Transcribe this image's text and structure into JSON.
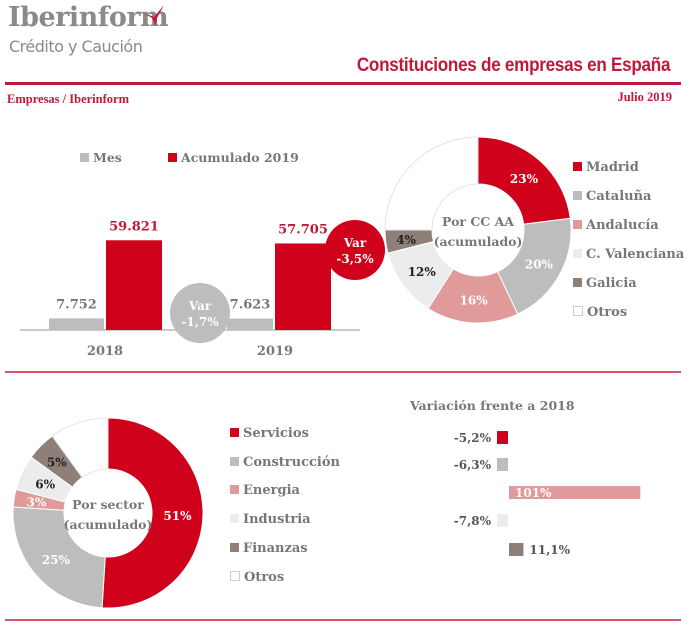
{
  "header": {
    "logo_name": "Iberinform",
    "logo_sub": "Crédito y Caución",
    "title": "Constituciones de empresas en España",
    "source": "Empresas / Iberinform",
    "date": "Julio 2019"
  },
  "colors": {
    "red": "#d0021b",
    "grey": "#bdbdbd",
    "pink": "#e09a9a",
    "light": "#ececec",
    "taupe": "#8e7f79",
    "white": "#ffffff",
    "brand": "#c1183a"
  },
  "chart_data": [
    {
      "type": "bar",
      "categories": [
        "2018",
        "2019"
      ],
      "series": [
        {
          "name": "Mes",
          "values": [
            7752,
            7623
          ],
          "labels": [
            "7.752",
            "7.623"
          ],
          "color": "#bdbdbd"
        },
        {
          "name": "Acumulado 2019",
          "values": [
            59821,
            57705
          ],
          "labels": [
            "59.821",
            "57.705"
          ],
          "color": "#d0021b"
        }
      ],
      "annotations": [
        {
          "title": "Var",
          "value": "-1,7%"
        },
        {
          "title": "Var",
          "value": "-3,5%"
        }
      ]
    },
    {
      "type": "pie",
      "center_label": [
        "Por CC AA",
        "(acumulado)"
      ],
      "slices": [
        {
          "name": "Madrid",
          "value": 23,
          "label": "23%",
          "color": "#d0021b"
        },
        {
          "name": "Cataluña",
          "value": 20,
          "label": "20%",
          "color": "#bdbdbd"
        },
        {
          "name": "Andalucía",
          "value": 16,
          "label": "16%",
          "color": "#e09a9a"
        },
        {
          "name": "C. Valenciana",
          "value": 12,
          "label": "12%",
          "color": "#ececec"
        },
        {
          "name": "Galicia",
          "value": 4,
          "label": "4%",
          "color": "#8e7f79"
        },
        {
          "name": "Otros",
          "value": 25,
          "label": "",
          "color": "#ffffff"
        }
      ]
    },
    {
      "type": "pie",
      "center_label": [
        "Por sector",
        "(acumulado)"
      ],
      "slices": [
        {
          "name": "Servicios",
          "value": 51,
          "label": "51%",
          "color": "#d0021b"
        },
        {
          "name": "Construcción",
          "value": 25,
          "label": "25%",
          "color": "#bdbdbd"
        },
        {
          "name": "Energia",
          "value": 3,
          "label": "3%",
          "color": "#e09a9a"
        },
        {
          "name": "Industria",
          "value": 6,
          "label": "6%",
          "color": "#ececec"
        },
        {
          "name": "Finanzas",
          "value": 5,
          "label": "5%",
          "color": "#8e7f79"
        },
        {
          "name": "Otros",
          "value": 10,
          "label": "",
          "color": "#ffffff"
        }
      ]
    },
    {
      "type": "bar",
      "orientation": "horizontal",
      "title": "Variación frente a 2018",
      "categories": [
        "Servicios",
        "Construcción",
        "Energia",
        "Industria",
        "Finanzas"
      ],
      "values": [
        -5.2,
        -6.3,
        101,
        -7.8,
        11.1
      ],
      "labels": [
        "-5,2%",
        "-6,3%",
        "101%",
        "-7,8%",
        "11,1%"
      ],
      "colors": [
        "#d0021b",
        "#bdbdbd",
        "#e09a9a",
        "#ececec",
        "#8e7f79"
      ]
    }
  ]
}
